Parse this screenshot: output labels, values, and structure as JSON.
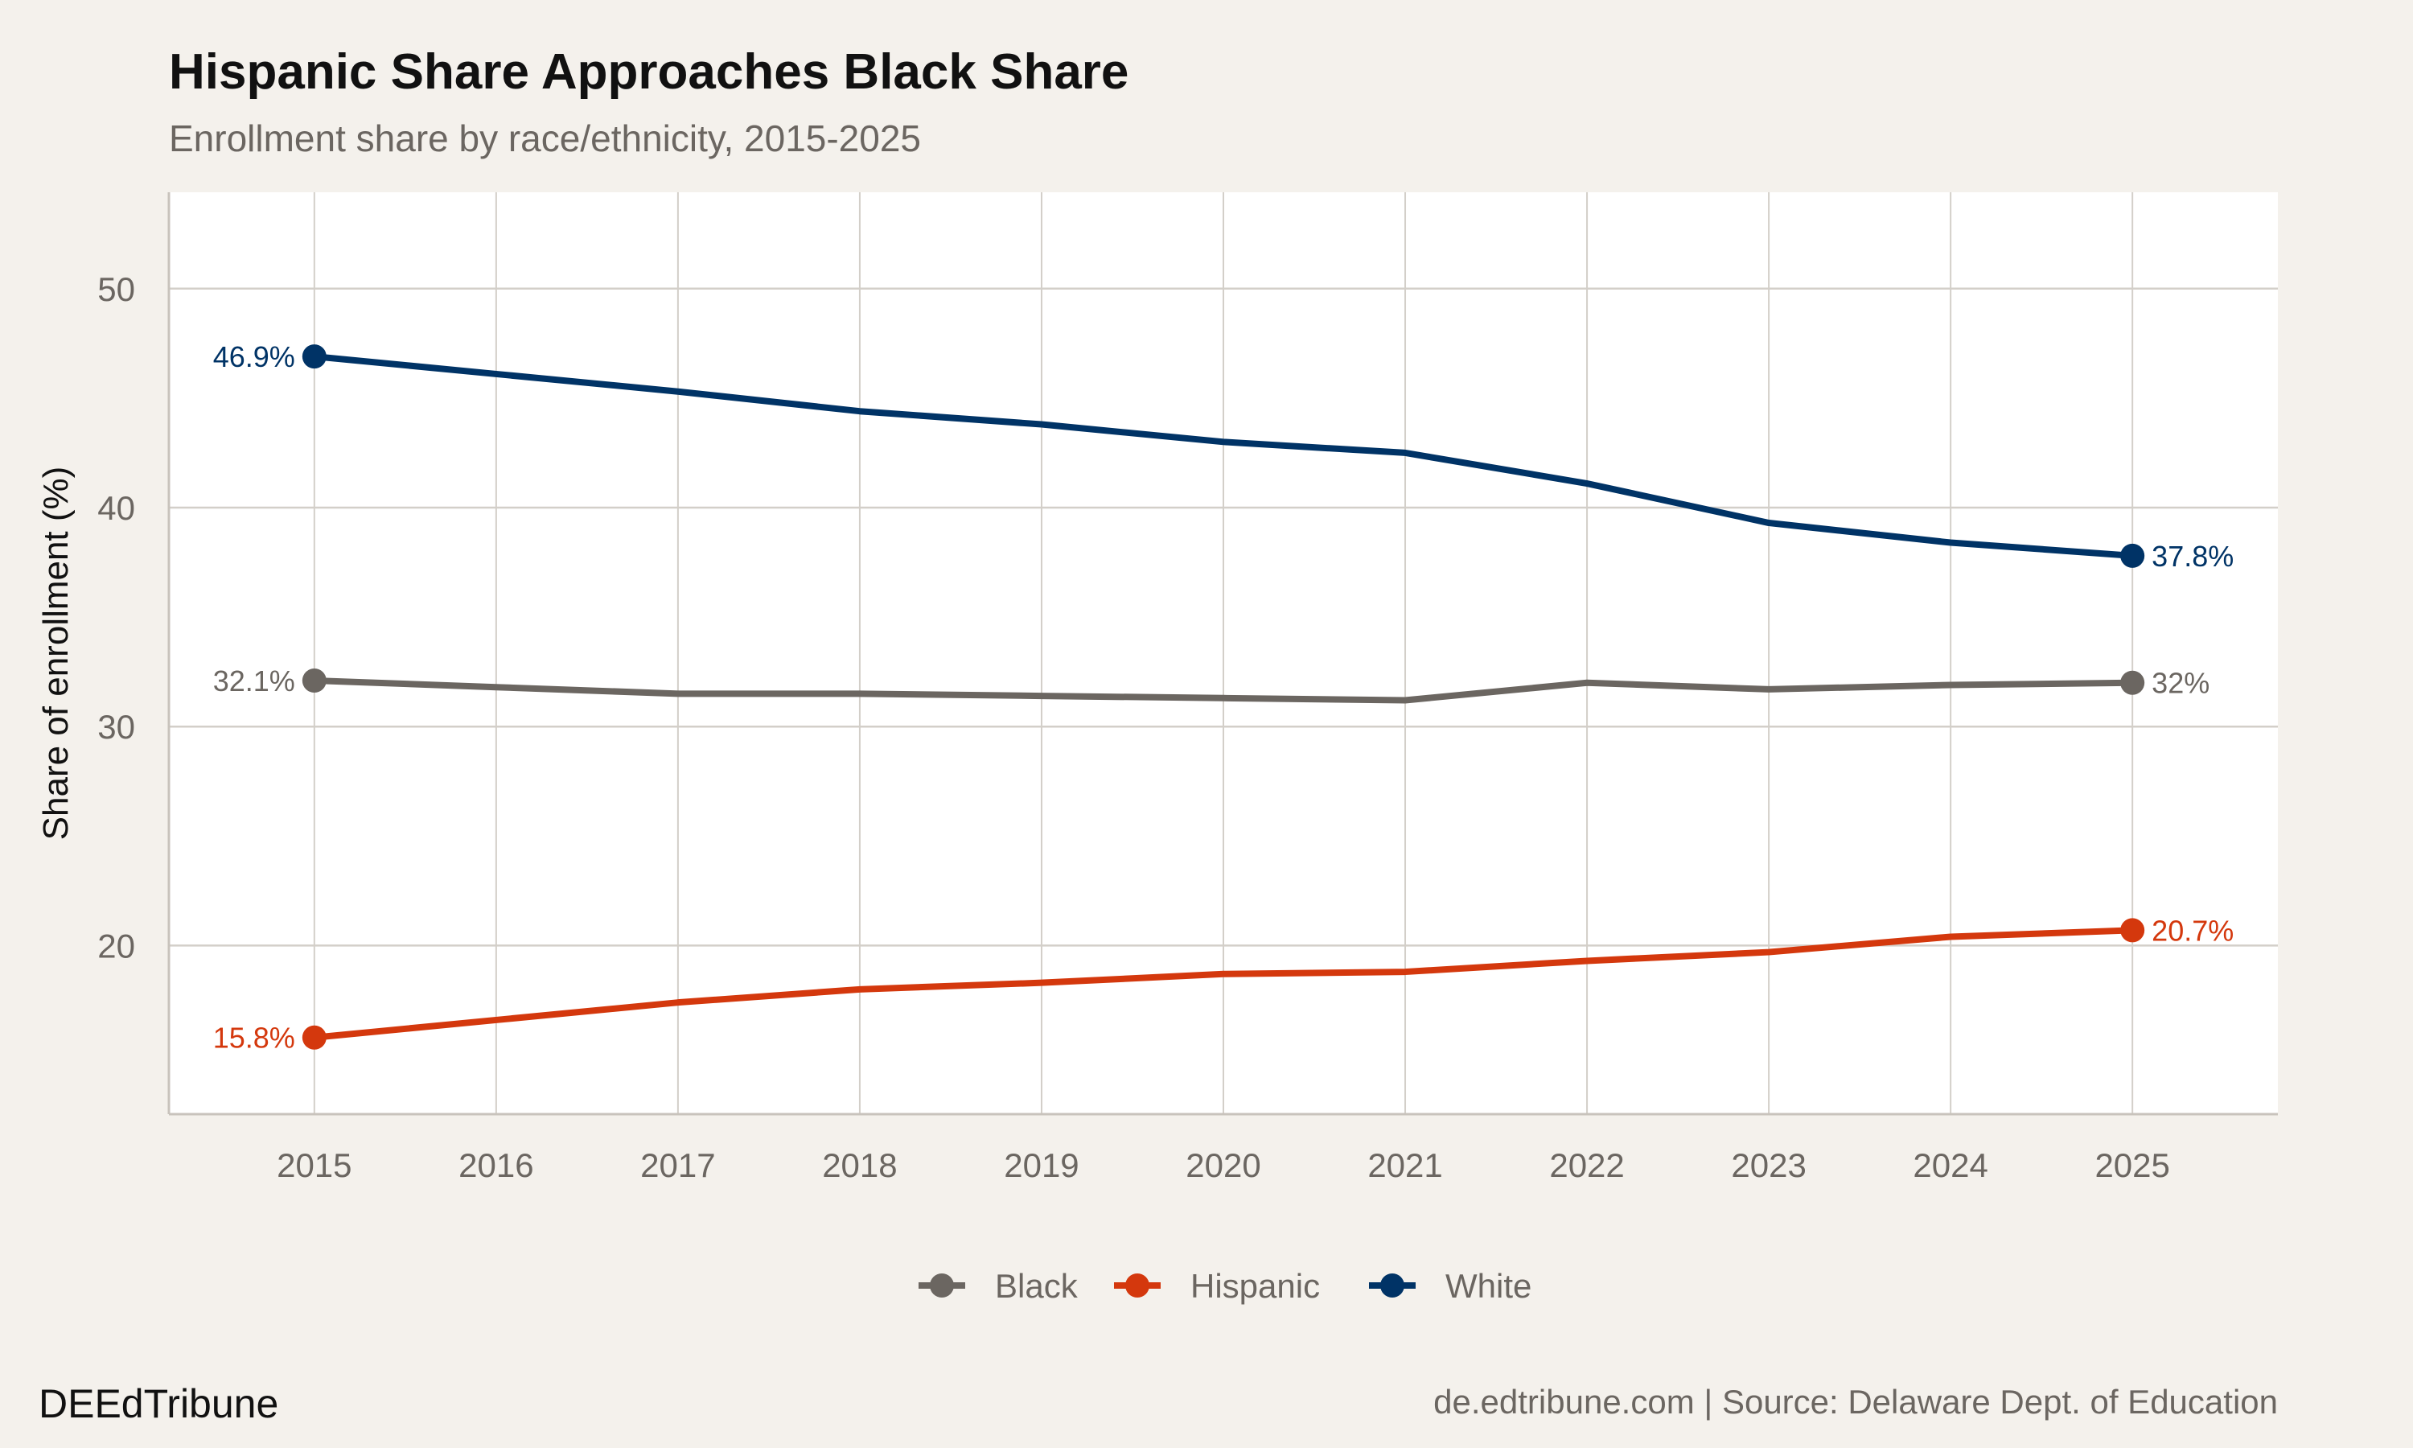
{
  "brand": "DEEdTribune",
  "caption": "de.edtribune.com | Source: Delaware Dept. of Education",
  "chart_data": {
    "type": "line",
    "title": "Hispanic Share Approaches Black Share",
    "subtitle": "Enrollment share by race/ethnicity, 2015-2025",
    "xlabel": "",
    "ylabel": "Share of enrollment (%)",
    "x": [
      2015,
      2016,
      2017,
      2018,
      2019,
      2020,
      2021,
      2022,
      2023,
      2024,
      2025
    ],
    "xlim": [
      2014.2,
      2025.8
    ],
    "ylim": [
      12.3,
      54.4
    ],
    "yticks": [
      20,
      30,
      40,
      50
    ],
    "grid": true,
    "legend": "bottom",
    "series": [
      {
        "name": "Black",
        "color": "#6b6661",
        "values": [
          32.1,
          31.8,
          31.5,
          31.5,
          31.4,
          31.3,
          31.2,
          32.0,
          31.7,
          31.9,
          32.0
        ],
        "start_label": "32.1%",
        "end_label": "32%"
      },
      {
        "name": "Hispanic",
        "color": "#d4380d",
        "values": [
          15.8,
          16.6,
          17.4,
          18.0,
          18.3,
          18.7,
          18.8,
          19.3,
          19.7,
          20.4,
          20.7
        ],
        "start_label": "15.8%",
        "end_label": "20.7%"
      },
      {
        "name": "White",
        "color": "#003366",
        "values": [
          46.9,
          46.1,
          45.3,
          44.4,
          43.8,
          43.0,
          42.5,
          41.1,
          39.3,
          38.4,
          37.8
        ],
        "start_label": "46.9%",
        "end_label": "37.8%"
      }
    ]
  }
}
